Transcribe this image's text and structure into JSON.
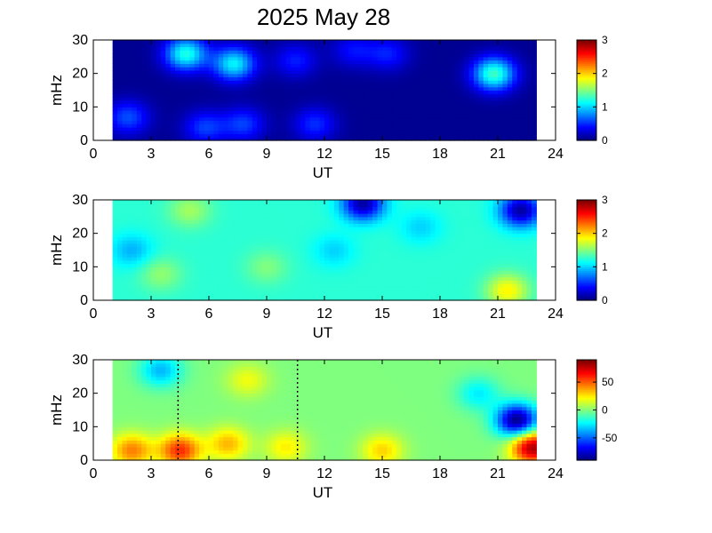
{
  "title": "2025 May 28",
  "chart_data": [
    {
      "type": "heatmap",
      "xlabel": "UT",
      "ylabel": "mHz",
      "xlim": [
        0,
        24
      ],
      "ylim": [
        0,
        30
      ],
      "xticks": [
        "0",
        "3",
        "6",
        "9",
        "12",
        "15",
        "18",
        "21",
        "24"
      ],
      "yticks": [
        "0",
        "10",
        "20",
        "30"
      ],
      "data_range_ut": [
        1.0,
        23.0
      ],
      "colormap": "jet",
      "colorbar": {
        "min": 0,
        "max": 3,
        "ticks": [
          "0",
          "1",
          "2",
          "3"
        ]
      },
      "baseline": 0.05,
      "features": [
        {
          "ut": 1.8,
          "mhz": 7,
          "value": 0.6
        },
        {
          "ut": 4.8,
          "mhz": 26,
          "value": 1.2
        },
        {
          "ut": 7.3,
          "mhz": 23,
          "value": 1.1
        },
        {
          "ut": 5.8,
          "mhz": 4,
          "value": 0.55
        },
        {
          "ut": 7.8,
          "mhz": 5,
          "value": 0.55
        },
        {
          "ut": 11.5,
          "mhz": 5,
          "value": 0.5
        },
        {
          "ut": 10.5,
          "mhz": 24,
          "value": 0.45
        },
        {
          "ut": 13.5,
          "mhz": 27,
          "value": 0.4
        },
        {
          "ut": 15.3,
          "mhz": 26,
          "value": 0.45
        },
        {
          "ut": 20.8,
          "mhz": 20,
          "value": 1.3
        }
      ]
    },
    {
      "type": "heatmap",
      "xlabel": "UT",
      "ylabel": "mHz",
      "xlim": [
        0,
        24
      ],
      "ylim": [
        0,
        30
      ],
      "xticks": [
        "0",
        "3",
        "6",
        "9",
        "12",
        "15",
        "18",
        "21",
        "24"
      ],
      "yticks": [
        "0",
        "10",
        "20",
        "30"
      ],
      "data_range_ut": [
        1.0,
        23.0
      ],
      "colormap": "jet",
      "colorbar": {
        "min": 0,
        "max": 3,
        "ticks": [
          "0",
          "1",
          "2",
          "3"
        ]
      },
      "baseline": 1.25,
      "features": [
        {
          "ut": 2.0,
          "mhz": 15,
          "value": 0.9
        },
        {
          "ut": 5.0,
          "mhz": 27,
          "value": 1.6
        },
        {
          "ut": 3.5,
          "mhz": 8,
          "value": 1.55
        },
        {
          "ut": 9.0,
          "mhz": 10,
          "value": 1.5
        },
        {
          "ut": 12.5,
          "mhz": 15,
          "value": 1.0
        },
        {
          "ut": 17.0,
          "mhz": 22,
          "value": 1.0
        },
        {
          "ut": 21.5,
          "mhz": 3,
          "value": 1.9
        },
        {
          "ut": 22.2,
          "mhz": 27,
          "value": 0.1
        },
        {
          "ut": 14.0,
          "mhz": 29,
          "value": 0.1
        }
      ]
    },
    {
      "type": "heatmap",
      "xlabel": "UT",
      "ylabel": "mHz",
      "xlim": [
        0,
        24
      ],
      "ylim": [
        0,
        30
      ],
      "xticks": [
        "0",
        "3",
        "6",
        "9",
        "12",
        "15",
        "18",
        "21",
        "24"
      ],
      "yticks": [
        "0",
        "10",
        "20",
        "30"
      ],
      "data_range_ut": [
        1.0,
        23.0
      ],
      "colormap": "jet",
      "colorbar": {
        "min": -90,
        "max": 90,
        "ticks": [
          "50",
          "0",
          "-50"
        ]
      },
      "baseline": 0,
      "features": [
        {
          "ut": 2.0,
          "mhz": 3,
          "value": 45
        },
        {
          "ut": 4.5,
          "mhz": 3,
          "value": 60
        },
        {
          "ut": 7.0,
          "mhz": 5,
          "value": 35
        },
        {
          "ut": 10.0,
          "mhz": 4,
          "value": 25
        },
        {
          "ut": 15.0,
          "mhz": 3,
          "value": 30
        },
        {
          "ut": 8.0,
          "mhz": 24,
          "value": 20
        },
        {
          "ut": 3.5,
          "mhz": 27,
          "value": -35
        },
        {
          "ut": 20.0,
          "mhz": 20,
          "value": -25
        },
        {
          "ut": 22.8,
          "mhz": 4,
          "value": 85
        },
        {
          "ut": 22.0,
          "mhz": 12,
          "value": -90
        }
      ],
      "markers_ut": [
        4.4,
        10.6
      ]
    }
  ]
}
